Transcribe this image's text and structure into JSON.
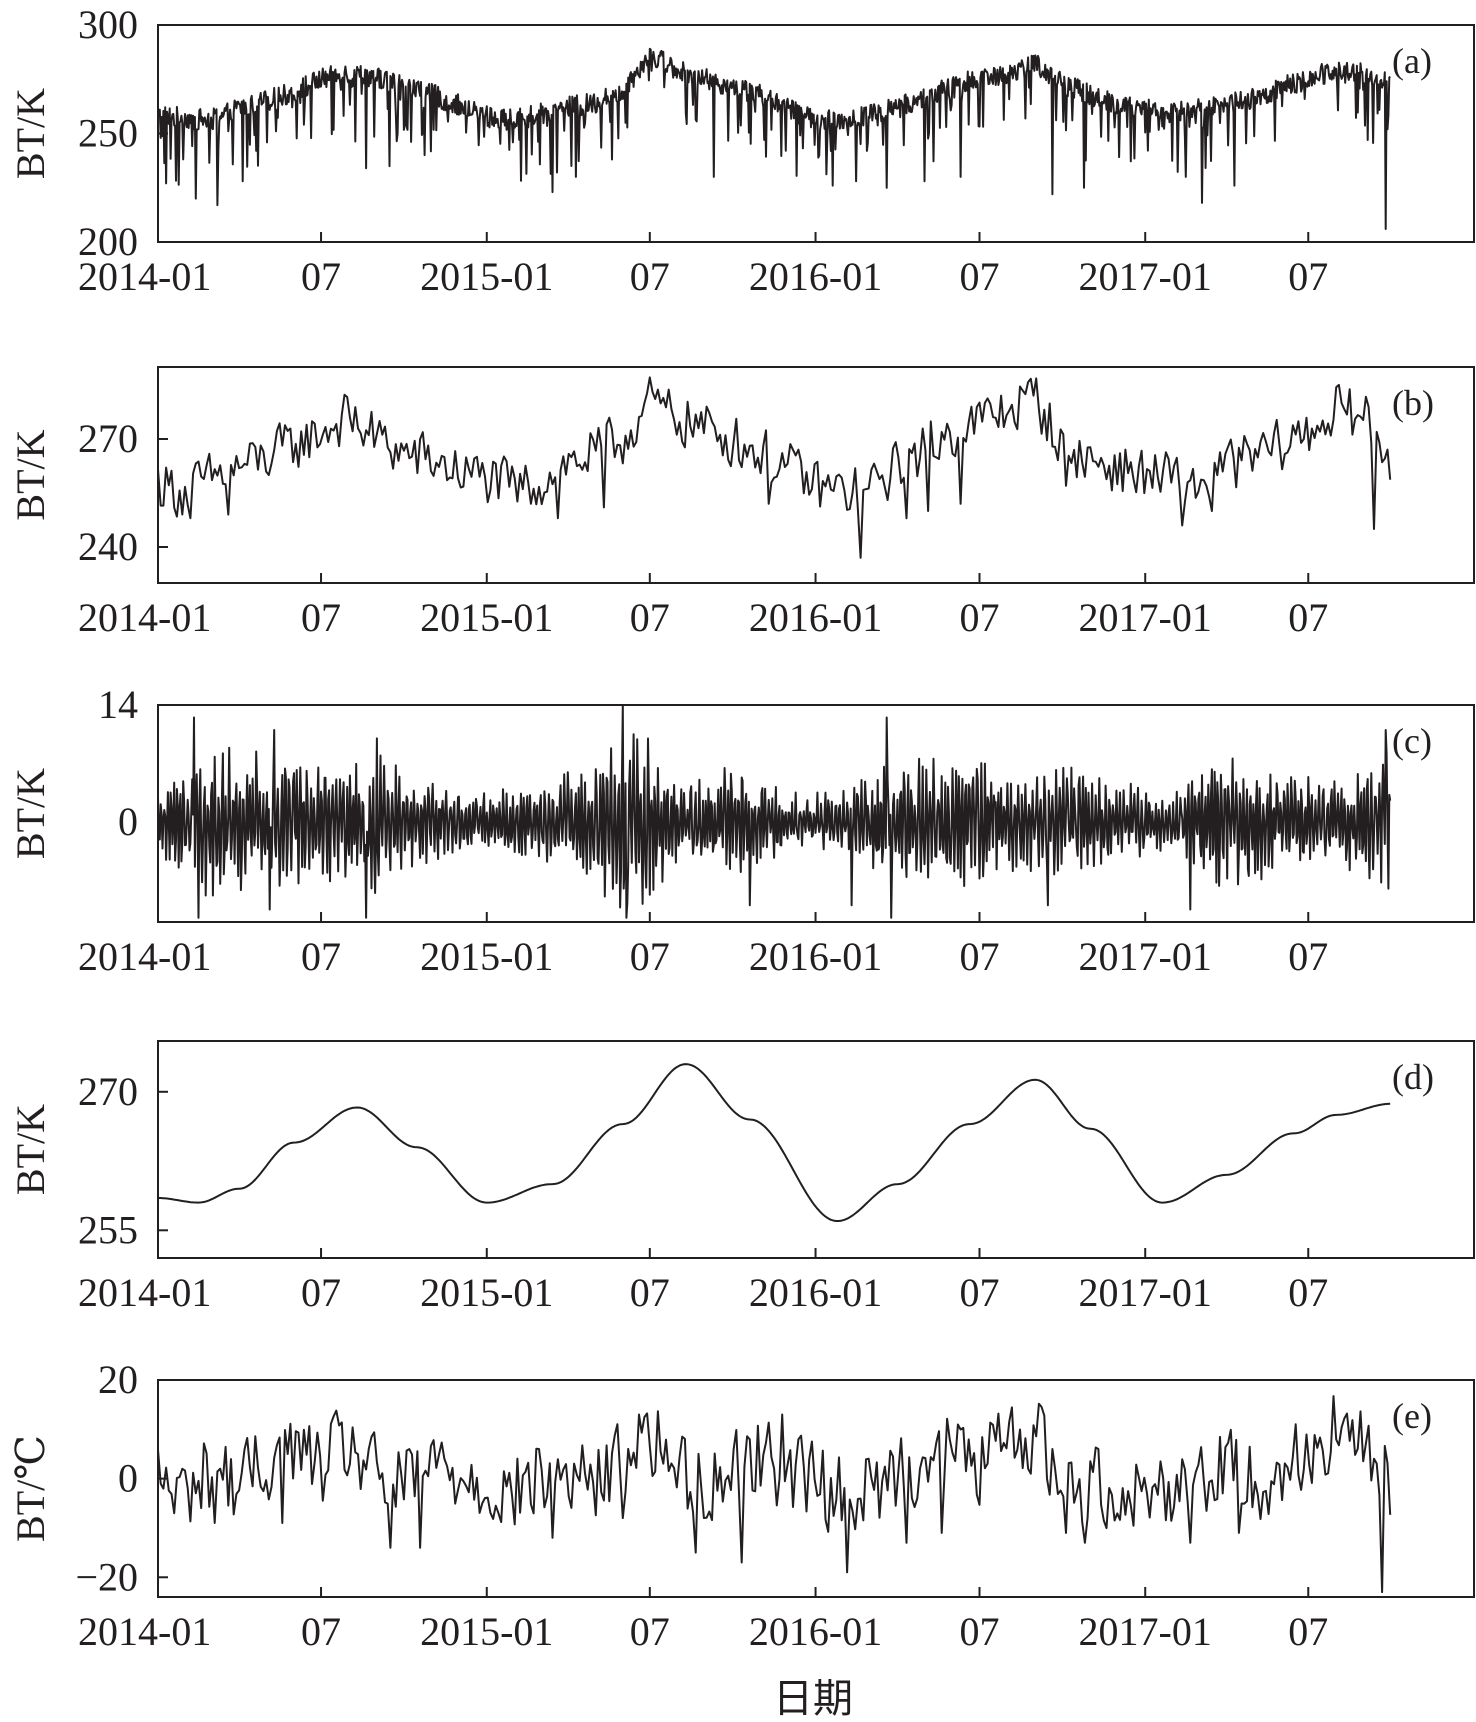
{
  "xlabel": "日期",
  "x_ticks": [
    "2014-01",
    "07",
    "2015-01",
    "07",
    "2016-01",
    "07",
    "2017-01",
    "07"
  ],
  "x_tick_dates": [
    "2014-01-01",
    "2014-07-01",
    "2015-01-01",
    "2015-07-01",
    "2016-01-01",
    "2016-07-01",
    "2017-01-01",
    "2017-07-01"
  ],
  "xlim": [
    "2014-01-01",
    "2018-01-01"
  ],
  "line_color": "#231f20",
  "chart_data": [
    {
      "type": "line",
      "panel_label": "(a)",
      "ylabel": "BT/K",
      "ylim": [
        200,
        300
      ],
      "yticks": [
        200,
        250,
        300
      ],
      "x": [
        "2014-01-01",
        "2014-02-01",
        "2014-03-01",
        "2014-04-01",
        "2014-05-01",
        "2014-06-01",
        "2014-07-01",
        "2014-08-01",
        "2014-09-01",
        "2014-10-01",
        "2014-11-01",
        "2014-12-01",
        "2015-01-01",
        "2015-02-01",
        "2015-03-01",
        "2015-04-01",
        "2015-05-01",
        "2015-06-01",
        "2015-07-01",
        "2015-08-01",
        "2015-09-01",
        "2015-10-01",
        "2015-11-01",
        "2015-12-01",
        "2016-01-01",
        "2016-02-01",
        "2016-03-01",
        "2016-04-01",
        "2016-05-01",
        "2016-06-01",
        "2016-07-01",
        "2016-08-01",
        "2016-09-01",
        "2016-10-01",
        "2016-11-01",
        "2016-12-01",
        "2017-01-01",
        "2017-02-01",
        "2017-03-01",
        "2017-04-01",
        "2017-05-01",
        "2017-06-01",
        "2017-07-01",
        "2017-08-01",
        "2017-09-01",
        "2017-10-01"
      ],
      "y": [
        258,
        257,
        256,
        262,
        265,
        269,
        275,
        278,
        276,
        272,
        268,
        263,
        258,
        256,
        259,
        262,
        264,
        270,
        287,
        280,
        275,
        272,
        268,
        262,
        257,
        256,
        259,
        262,
        266,
        272,
        276,
        278,
        282,
        273,
        268,
        264,
        261,
        260,
        262,
        264,
        266,
        271,
        275,
        280,
        278,
        272
      ],
      "spikes": [
        [
          "2014-01-10",
          227
        ],
        [
          "2014-02-12",
          220
        ],
        [
          "2014-03-08",
          217
        ],
        [
          "2014-04-05",
          228
        ],
        [
          "2014-08-20",
          234
        ],
        [
          "2014-09-15",
          235
        ],
        [
          "2015-03-15",
          223
        ],
        [
          "2015-04-10",
          230
        ],
        [
          "2015-05-20",
          238
        ],
        [
          "2015-09-10",
          230
        ],
        [
          "2016-01-20",
          226
        ],
        [
          "2016-02-15",
          228
        ],
        [
          "2016-03-20",
          225
        ],
        [
          "2016-05-01",
          228
        ],
        [
          "2016-06-10",
          230
        ],
        [
          "2016-09-20",
          222
        ],
        [
          "2016-10-25",
          225
        ],
        [
          "2017-02-15",
          230
        ],
        [
          "2017-03-05",
          218
        ],
        [
          "2017-04-10",
          226
        ],
        [
          "2017-09-05",
          247
        ],
        [
          "2017-09-25",
          206
        ]
      ]
    },
    {
      "type": "line",
      "panel_label": "(b)",
      "ylabel": "BT/K",
      "ylim": [
        230,
        290
      ],
      "yticks": [
        240,
        270
      ],
      "x": [
        "2014-01-01",
        "2014-02-01",
        "2014-03-01",
        "2014-04-01",
        "2014-05-01",
        "2014-06-01",
        "2014-07-01",
        "2014-08-01",
        "2014-09-01",
        "2014-10-01",
        "2014-11-01",
        "2014-12-01",
        "2015-01-01",
        "2015-02-01",
        "2015-03-01",
        "2015-04-01",
        "2015-05-01",
        "2015-06-01",
        "2015-07-01",
        "2015-08-01",
        "2015-09-01",
        "2015-10-01",
        "2015-11-01",
        "2015-12-01",
        "2016-01-01",
        "2016-02-01",
        "2016-03-01",
        "2016-04-01",
        "2016-05-01",
        "2016-06-01",
        "2016-07-01",
        "2016-08-01",
        "2016-09-01",
        "2016-10-01",
        "2016-11-01",
        "2016-12-01",
        "2017-01-01",
        "2017-02-01",
        "2017-03-01",
        "2017-04-01",
        "2017-05-01",
        "2017-06-01",
        "2017-07-01",
        "2017-08-01",
        "2017-09-01",
        "2017-10-01"
      ],
      "y": [
        258,
        255,
        259,
        262,
        265,
        268,
        272,
        276,
        270,
        266,
        264,
        261,
        259,
        256,
        258,
        263,
        266,
        270,
        280,
        276,
        273,
        270,
        266,
        262,
        257,
        255,
        256,
        262,
        267,
        272,
        275,
        278,
        282,
        268,
        264,
        262,
        260,
        259,
        257,
        262,
        265,
        268,
        272,
        278,
        276,
        265
      ],
      "spikes": [
        [
          "2014-02-05",
          248
        ],
        [
          "2014-03-20",
          249
        ],
        [
          "2015-03-20",
          248
        ],
        [
          "2015-05-10",
          251
        ],
        [
          "2015-11-10",
          252
        ],
        [
          "2016-02-20",
          237
        ],
        [
          "2016-04-10",
          248
        ],
        [
          "2016-05-05",
          250
        ],
        [
          "2016-06-10",
          252
        ],
        [
          "2016-10-05",
          257
        ],
        [
          "2017-02-10",
          246
        ],
        [
          "2017-03-15",
          250
        ],
        [
          "2017-09-12",
          245
        ]
      ]
    },
    {
      "type": "line",
      "panel_label": "(c)",
      "ylabel": "BT/K",
      "ylim": [
        -12,
        14
      ],
      "yticks": [
        0,
        14
      ],
      "amplitude_envelope": {
        "x": [
          "2014-01-01",
          "2014-03-01",
          "2014-05-01",
          "2014-07-01",
          "2014-09-01",
          "2014-11-01",
          "2015-01-01",
          "2015-03-01",
          "2015-05-01",
          "2015-06-10",
          "2015-08-01",
          "2015-10-01",
          "2015-12-01",
          "2016-02-01",
          "2016-04-01",
          "2016-06-01",
          "2016-08-01",
          "2016-10-01",
          "2016-12-01",
          "2017-02-01",
          "2017-04-01",
          "2017-06-01",
          "2017-08-01",
          "2017-10-01"
        ],
        "amp": [
          3,
          8,
          7,
          6,
          7,
          4,
          3,
          4,
          6,
          11,
          4,
          6,
          3,
          3,
          7,
          7,
          5,
          6,
          4,
          3,
          7,
          5,
          4,
          7
        ]
      },
      "spikes": [
        [
          "2014-02-10",
          12.5
        ],
        [
          "2014-02-15",
          -11.5
        ],
        [
          "2014-05-10",
          11
        ],
        [
          "2014-05-05",
          -10.5
        ],
        [
          "2014-09-01",
          10
        ],
        [
          "2014-08-20",
          -11.5
        ],
        [
          "2015-06-01",
          14
        ],
        [
          "2015-06-05",
          -11.5
        ],
        [
          "2015-10-20",
          -10
        ],
        [
          "2016-02-10",
          -10
        ],
        [
          "2016-03-20",
          12.5
        ],
        [
          "2016-03-25",
          -11.5
        ],
        [
          "2016-09-15",
          -10
        ],
        [
          "2017-02-20",
          -10.5
        ],
        [
          "2017-09-25",
          11
        ],
        [
          "2017-09-28",
          -8
        ]
      ]
    },
    {
      "type": "line",
      "panel_label": "(d)",
      "ylabel": "BT/K",
      "ylim": [
        252,
        275.5
      ],
      "yticks": [
        255,
        270
      ],
      "x": [
        "2014-01-01",
        "2014-02-15",
        "2014-04-01",
        "2014-06-01",
        "2014-08-10",
        "2014-10-15",
        "2015-01-01",
        "2015-03-15",
        "2015-06-01",
        "2015-08-10",
        "2015-10-20",
        "2016-01-25",
        "2016-04-01",
        "2016-06-20",
        "2016-09-01",
        "2016-11-01",
        "2017-01-20",
        "2017-04-01",
        "2017-06-15",
        "2017-08-01",
        "2017-10-01"
      ],
      "y": [
        258.5,
        258,
        259.5,
        264.5,
        268.3,
        264,
        258,
        260,
        266.5,
        273,
        267,
        256,
        260,
        266.5,
        271.3,
        266,
        258,
        261,
        265.5,
        267.5,
        268.7
      ]
    },
    {
      "type": "line",
      "panel_label": "(e)",
      "ylabel": "BT/℃",
      "ylim": [
        -24,
        20
      ],
      "yticks": [
        -20,
        0,
        20
      ],
      "x": [
        "2014-01-01",
        "2014-02-01",
        "2014-03-01",
        "2014-04-01",
        "2014-05-01",
        "2014-06-01",
        "2014-07-01",
        "2014-08-01",
        "2014-09-01",
        "2014-10-01",
        "2014-11-01",
        "2014-12-01",
        "2015-01-01",
        "2015-02-01",
        "2015-03-01",
        "2015-04-01",
        "2015-05-01",
        "2015-06-01",
        "2015-07-01",
        "2015-08-01",
        "2015-09-01",
        "2015-10-01",
        "2015-11-01",
        "2015-12-01",
        "2016-01-01",
        "2016-02-01",
        "2016-03-01",
        "2016-04-01",
        "2016-05-01",
        "2016-06-01",
        "2016-07-01",
        "2016-08-01",
        "2016-09-01",
        "2016-10-01",
        "2016-11-01",
        "2016-12-01",
        "2017-01-01",
        "2017-02-01",
        "2017-03-01",
        "2017-04-01",
        "2017-05-01",
        "2017-06-01",
        "2017-07-01",
        "2017-08-01",
        "2017-09-01",
        "2017-10-01"
      ],
      "y": [
        0,
        -3,
        2,
        -1,
        3,
        6,
        2,
        7,
        0,
        -2,
        3,
        1,
        -1,
        -3,
        0,
        1,
        -1,
        4,
        9,
        2,
        -2,
        3,
        5,
        1,
        0,
        -4,
        -3,
        2,
        4,
        6,
        3,
        7,
        10,
        -2,
        -1,
        -2,
        -3,
        -1,
        1,
        3,
        -1,
        2,
        5,
        10,
        6,
        -4
      ],
      "spikes": [
        [
          "2014-01-20",
          -7
        ],
        [
          "2014-03-05",
          -9
        ],
        [
          "2014-05-20",
          -9
        ],
        [
          "2014-09-15",
          -14
        ],
        [
          "2014-10-20",
          -14
        ],
        [
          "2015-03-15",
          -12
        ],
        [
          "2015-06-01",
          -8
        ],
        [
          "2015-06-20",
          13
        ],
        [
          "2015-08-20",
          -15
        ],
        [
          "2015-10-10",
          -17
        ],
        [
          "2015-11-25",
          13
        ],
        [
          "2016-02-05",
          -19
        ],
        [
          "2016-04-10",
          -13
        ],
        [
          "2016-05-20",
          -11
        ],
        [
          "2016-10-05",
          -11
        ],
        [
          "2016-10-25",
          -13
        ],
        [
          "2017-02-20",
          -13
        ],
        [
          "2017-04-15",
          -11
        ],
        [
          "2017-09-20",
          -23
        ]
      ]
    }
  ]
}
